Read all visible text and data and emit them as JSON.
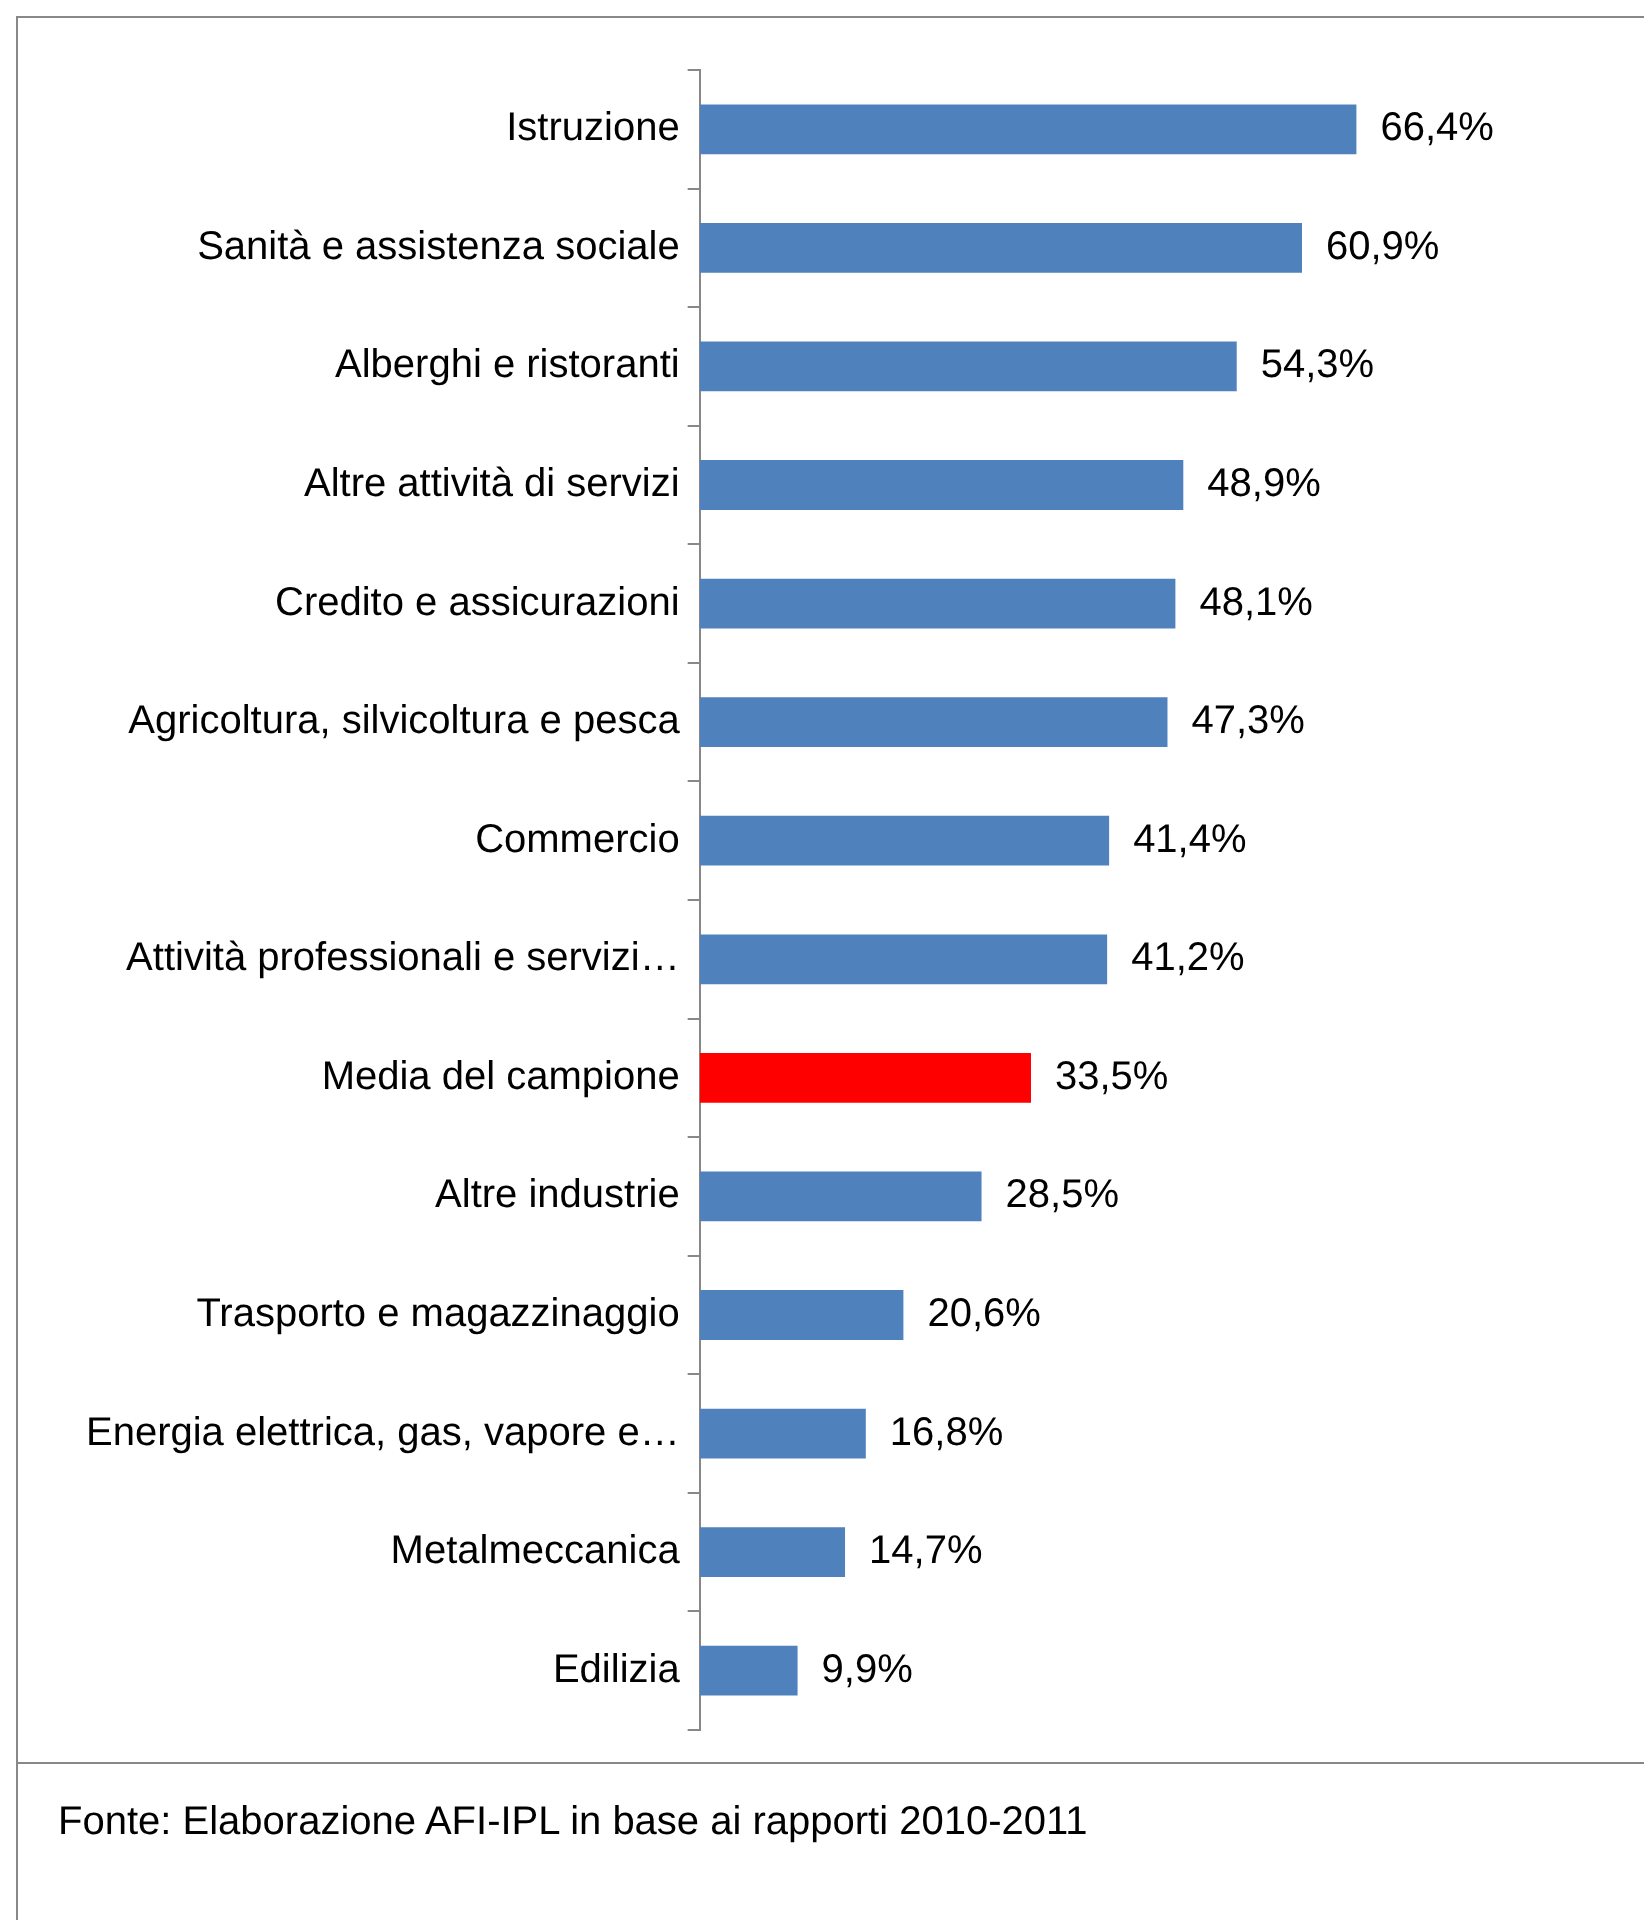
{
  "chart_data": {
    "type": "bar",
    "orientation": "horizontal",
    "categories": [
      "Istruzione",
      "Sanità e assistenza sociale",
      "Alberghi e ristoranti",
      "Altre attività di servizi",
      "Credito e assicurazioni",
      "Agricoltura, silvicoltura e pesca",
      "Commercio",
      "Attività professionali e servizi…",
      "Media del campione",
      "Altre industrie",
      "Trasporto e magazzinaggio",
      "Energia elettrica, gas, vapore e…",
      "Metalmeccanica",
      "Edilizia"
    ],
    "values": [
      66.4,
      60.9,
      54.3,
      48.9,
      48.1,
      47.3,
      41.4,
      41.2,
      33.5,
      28.5,
      20.6,
      16.8,
      14.7,
      9.9
    ],
    "colors": [
      "#4f81bd",
      "#4f81bd",
      "#4f81bd",
      "#4f81bd",
      "#4f81bd",
      "#4f81bd",
      "#4f81bd",
      "#4f81bd",
      "#ff0000",
      "#4f81bd",
      "#4f81bd",
      "#4f81bd",
      "#4f81bd",
      "#4f81bd"
    ],
    "value_labels": [
      "66,4%",
      "60,9%",
      "54,3%",
      "48,9%",
      "48,1%",
      "47,3%",
      "41,4%",
      "41,2%",
      "33,5%",
      "28,5%",
      "20,6%",
      "16,8%",
      "14,7%",
      "9,9%"
    ],
    "tick_labels": "y",
    "legend": false,
    "annotations": [
      "Fonte: Elaborazione AFI-IPL in base ai rapporti 2010-2011"
    ]
  }
}
